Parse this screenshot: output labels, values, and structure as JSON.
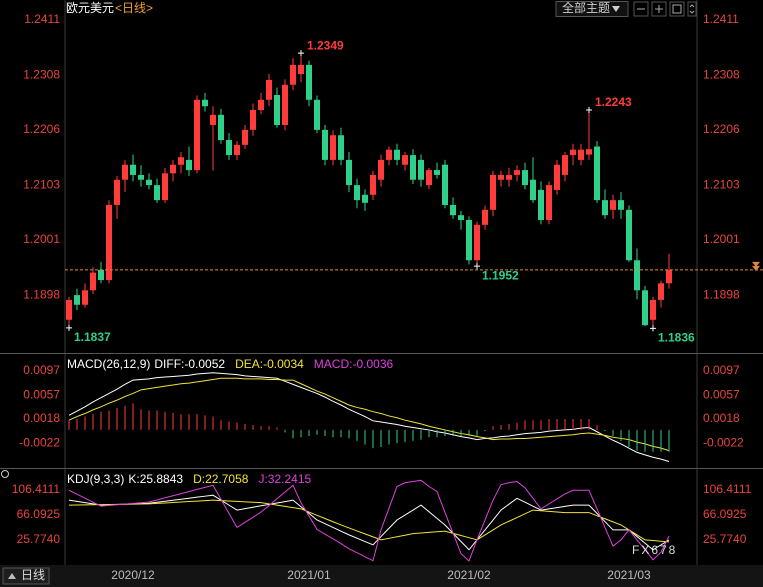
{
  "header": {
    "symbol": "欧元美元",
    "period": "<日线>",
    "theme_button": "全部主题"
  },
  "footer": {
    "period": "日线"
  },
  "watermark": "FX678",
  "chart_data": [
    {
      "type": "candlestick",
      "categories": [
        null,
        null,
        null,
        null,
        null,
        null,
        null,
        null,
        "2020/12",
        null,
        null,
        null,
        null,
        null,
        null,
        null,
        null,
        null,
        null,
        null,
        null,
        null,
        null,
        null,
        null,
        null,
        null,
        null,
        null,
        null,
        "2021/01",
        null,
        null,
        null,
        null,
        null,
        null,
        null,
        null,
        null,
        null,
        null,
        null,
        null,
        null,
        null,
        null,
        null,
        null,
        null,
        "2021/02",
        null,
        null,
        null,
        null,
        null,
        null,
        null,
        null,
        null,
        null,
        null,
        null,
        null,
        null,
        null,
        null,
        null,
        null,
        null,
        "2021/03",
        null,
        null,
        null,
        null,
        null
      ],
      "open": [
        1.1852,
        1.1898,
        1.188,
        1.1907,
        1.1945,
        1.1926,
        1.2066,
        1.2113,
        1.2141,
        1.2122,
        1.2113,
        1.2103,
        1.2075,
        1.2125,
        1.2141,
        1.215,
        1.2131,
        1.2262,
        1.2215,
        1.2234,
        1.2187,
        1.2159,
        1.2178,
        1.2206,
        1.2243,
        1.2262,
        1.2271,
        1.2215,
        1.229,
        1.231,
        1.2327,
        1.2262,
        1.2206,
        1.215,
        1.2196,
        1.215,
        1.2103,
        1.2085,
        1.2085,
        1.2113,
        1.215,
        1.2169,
        1.2141,
        1.2159,
        1.215,
        1.2103,
        1.2131,
        1.2141,
        1.2066,
        1.2047,
        1.2038,
        1.1963,
        1.2029,
        1.2057,
        1.2113,
        1.2113,
        1.2122,
        1.2131,
        1.2113,
        1.2094,
        1.2038,
        1.2094,
        1.2122,
        1.2159,
        1.215,
        1.216,
        1.2175,
        1.2075,
        1.2057,
        1.2075,
        1.2057,
        1.1963,
        1.1907,
        1.1852,
        1.1889,
        1.192
      ],
      "high": [
        1.1895,
        1.191,
        1.192,
        1.195,
        1.196,
        1.2075,
        1.212,
        1.215,
        1.216,
        1.214,
        1.2125,
        1.2115,
        1.2135,
        1.215,
        1.2165,
        1.2175,
        1.227,
        1.2275,
        1.225,
        1.2245,
        1.22,
        1.2185,
        1.2215,
        1.2255,
        1.2275,
        1.231,
        1.2285,
        1.23,
        1.234,
        1.2349,
        1.2335,
        1.227,
        1.2215,
        1.2205,
        1.221,
        1.2165,
        1.2115,
        1.2095,
        1.213,
        1.216,
        1.2175,
        1.218,
        1.2165,
        1.217,
        1.216,
        1.2135,
        1.2145,
        1.215,
        1.208,
        1.2055,
        1.2045,
        1.2035,
        1.2065,
        1.213,
        1.213,
        1.2135,
        1.214,
        1.2145,
        1.2155,
        1.211,
        1.211,
        1.215,
        1.2165,
        1.218,
        1.218,
        1.2243,
        1.2185,
        1.2095,
        1.2085,
        1.209,
        1.2065,
        1.1985,
        1.1915,
        1.1895,
        1.1925,
        1.1975
      ],
      "low": [
        1.1837,
        1.187,
        1.1875,
        1.19,
        1.192,
        1.192,
        1.204,
        1.209,
        1.211,
        1.21,
        1.2095,
        1.207,
        1.207,
        1.211,
        1.2125,
        1.212,
        1.2125,
        1.224,
        1.213,
        1.218,
        1.215,
        1.215,
        1.217,
        1.2195,
        1.2235,
        1.225,
        1.221,
        1.2205,
        1.228,
        1.2295,
        1.225,
        1.22,
        1.214,
        1.214,
        1.214,
        1.209,
        1.206,
        1.2055,
        1.2075,
        1.21,
        1.214,
        1.214,
        1.213,
        1.2105,
        1.21,
        1.2095,
        1.2115,
        1.206,
        1.204,
        1.202,
        1.1955,
        1.1952,
        1.202,
        1.2045,
        1.21,
        1.21,
        1.211,
        1.2095,
        1.207,
        1.203,
        1.203,
        1.2085,
        1.211,
        1.214,
        1.214,
        1.215,
        1.207,
        1.204,
        1.204,
        1.204,
        1.196,
        1.189,
        1.184,
        1.1836,
        1.1875,
        1.191
      ],
      "close": [
        1.1889,
        1.188,
        1.1907,
        1.194,
        1.1926,
        1.2066,
        1.2113,
        1.2141,
        1.2122,
        1.2113,
        1.2103,
        1.2075,
        1.2125,
        1.2141,
        1.2155,
        1.2131,
        1.2262,
        1.225,
        1.2234,
        1.2187,
        1.2159,
        1.2178,
        1.2206,
        1.2243,
        1.2262,
        1.2299,
        1.2215,
        1.229,
        1.2327,
        1.2327,
        1.2262,
        1.2206,
        1.215,
        1.2196,
        1.215,
        1.2103,
        1.2075,
        1.207,
        1.2122,
        1.215,
        1.2169,
        1.215,
        1.2159,
        1.2113,
        1.2113,
        1.2131,
        1.2122,
        1.2066,
        1.2047,
        1.2038,
        1.1963,
        1.2029,
        1.2057,
        1.2122,
        1.2122,
        1.2122,
        1.2131,
        1.2103,
        1.2075,
        1.2038,
        1.2103,
        1.2141,
        1.2159,
        1.2169,
        1.2169,
        1.217,
        1.2075,
        1.2047,
        1.2075,
        1.2057,
        1.1963,
        1.1907,
        1.1842,
        1.1889,
        1.192,
        1.1945
      ],
      "up_color": "#ff3b3b",
      "down_color": "#2fd08a",
      "last_price_color": "#e0883a",
      "peak_labels": [
        1.2349,
        1.2243
      ],
      "trough_labels": [
        1.1952,
        1.1837,
        1.1836
      ],
      "ylim": [
        1.1792,
        1.2448
      ],
      "yticks": [
        1.2411,
        1.2308,
        1.2206,
        1.2103,
        1.2001,
        1.1898
      ]
    },
    {
      "type": "line",
      "title": "MACD(26,12,9)",
      "series": [
        {
          "name": "DIFF:-0.0052",
          "color": "#ffffff",
          "values": [
            0.0024,
            0.0031,
            0.0038,
            0.0046,
            0.0053,
            0.006,
            0.0067,
            0.0075,
            0.0082,
            0.0083,
            0.0084,
            0.0086,
            0.0087,
            0.0088,
            0.0089,
            0.009,
            0.0092,
            0.0093,
            0.0094,
            0.0093,
            0.0092,
            0.0091,
            0.0089,
            0.0088,
            0.0087,
            0.0086,
            0.0085,
            0.008,
            0.0075,
            0.007,
            0.0065,
            0.006,
            0.0054,
            0.0047,
            0.0041,
            0.0034,
            0.0028,
            0.0022,
            0.0015,
            0.0013,
            0.0011,
            0.0009,
            0.0006,
            0.0004,
            0.0002,
            0.0,
            -0.0003,
            -0.0005,
            -0.0008,
            -0.0011,
            -0.0013,
            -0.0016,
            -0.0014,
            -0.0013,
            -0.0011,
            -0.001,
            -0.0008,
            -0.0006,
            -0.0005,
            -0.0004,
            -0.0002,
            -0.0001,
            0.0,
            0.0001,
            0.0003,
            0.0004,
            -0.0003,
            -0.001,
            -0.0017,
            -0.0023,
            -0.003,
            -0.0037,
            -0.0041,
            -0.0045,
            -0.0048,
            -0.0052
          ]
        },
        {
          "name": "DEA:-0.0034",
          "color": "#f2e23a",
          "values": [
            0.0016,
            0.0022,
            0.0027,
            0.0033,
            0.0038,
            0.0044,
            0.0049,
            0.0055,
            0.006,
            0.0066,
            0.0068,
            0.007,
            0.0072,
            0.0074,
            0.0076,
            0.0077,
            0.0079,
            0.0081,
            0.0083,
            0.0085,
            0.0085,
            0.0085,
            0.0084,
            0.0084,
            0.0084,
            0.0083,
            0.0083,
            0.0082,
            0.0082,
            0.0076,
            0.007,
            0.0064,
            0.0059,
            0.0053,
            0.0047,
            0.0041,
            0.0037,
            0.0034,
            0.003,
            0.0027,
            0.0023,
            0.002,
            0.0016,
            0.0013,
            0.001,
            0.0006,
            0.0003,
            0.0,
            -0.0003,
            -0.0006,
            -0.0008,
            -0.0011,
            -0.0013,
            -0.0016,
            -0.0015,
            -0.0015,
            -0.0014,
            -0.0014,
            -0.0013,
            -0.0012,
            -0.0011,
            -0.001,
            -0.0009,
            -0.0008,
            -0.0006,
            -0.0005,
            -0.0007,
            -0.0009,
            -0.0012,
            -0.0014,
            -0.0016,
            -0.002,
            -0.0023,
            -0.0027,
            -0.003,
            -0.0034
          ]
        },
        {
          "name": "MACD:-0.0036",
          "color": "#e040e0",
          "style": "histogram",
          "positive_color": "#ff3b3b",
          "negative_color": "#2fd08a",
          "values": [
            0.0016,
            0.0018,
            0.0022,
            0.0026,
            0.003,
            0.0032,
            0.0036,
            0.004,
            0.0044,
            0.0034,
            0.0032,
            0.0032,
            0.003,
            0.0028,
            0.0026,
            0.0026,
            0.0026,
            0.0024,
            0.0022,
            0.0016,
            0.0014,
            0.0012,
            0.001,
            0.0008,
            0.0006,
            0.0006,
            0.0004,
            -0.0004,
            -0.0014,
            -0.0012,
            -0.001,
            -0.0008,
            -0.001,
            -0.0012,
            -0.0012,
            -0.0014,
            -0.0018,
            -0.0024,
            -0.003,
            -0.0028,
            -0.0024,
            -0.0022,
            -0.002,
            -0.0018,
            -0.0016,
            -0.0012,
            -0.0012,
            -0.001,
            -0.001,
            -0.001,
            -0.001,
            -0.001,
            -0.0002,
            0.0006,
            0.0008,
            0.001,
            0.0012,
            0.0016,
            0.0016,
            0.0016,
            0.0018,
            0.0018,
            0.0018,
            0.0018,
            0.0018,
            0.0018,
            0.0008,
            -0.0002,
            -0.001,
            -0.0018,
            -0.0028,
            -0.0034,
            -0.0036,
            -0.0036,
            -0.0036,
            -0.0036
          ]
        }
      ],
      "ylim": [
        -0.0061,
        0.012
      ],
      "yticks": [
        0.0097,
        0.0057,
        0.0018,
        -0.0022
      ]
    },
    {
      "type": "line",
      "title": "KDJ(9,3,3)",
      "series": [
        {
          "name": "K:25.8843",
          "color": "#ffffff",
          "values": [
            90,
            88,
            86,
            84,
            82,
            82.5,
            83,
            83.5,
            84,
            84.5,
            85,
            86.6,
            88.3,
            89.9,
            91.5,
            93.1,
            94.8,
            96.4,
            98,
            90,
            82,
            74,
            76.3,
            78.6,
            80.9,
            83.1,
            85.4,
            87.7,
            90,
            79.3,
            68.7,
            58,
            52,
            46,
            40,
            34,
            28.7,
            23.3,
            18,
            31.3,
            44.7,
            58,
            66,
            74,
            82,
            71.3,
            60.7,
            50,
            36.7,
            23.3,
            10,
            26,
            42,
            58,
            74,
            83.5,
            93,
            86.7,
            80.3,
            74,
            76,
            78,
            80,
            82,
            82,
            82,
            68.7,
            55.3,
            42,
            42,
            42,
            31.3,
            20.7,
            10,
            17.9,
            25.8843
          ]
        },
        {
          "name": "D:22.7058",
          "color": "#f2e23a",
          "values": [
            82,
            82.2,
            82.4,
            82.6,
            82.8,
            83,
            83.2,
            83.4,
            83.6,
            83.8,
            84,
            84.8,
            85.5,
            86.3,
            87,
            87.8,
            88.5,
            89.3,
            90,
            89.3,
            88.7,
            88,
            87.3,
            86.7,
            86,
            84,
            82,
            80,
            78,
            76,
            70.8,
            65.6,
            60.4,
            55.2,
            50,
            45.2,
            40.4,
            35.6,
            30.8,
            26,
            28.5,
            31,
            33.5,
            36,
            37,
            38,
            39,
            40,
            36.5,
            33,
            29.5,
            26,
            34,
            42,
            50,
            56,
            62,
            68,
            74,
            73,
            72,
            71,
            70,
            70,
            70,
            70,
            65,
            60,
            55,
            50,
            42,
            34,
            26,
            24.9,
            23.8,
            22.7058
          ]
        },
        {
          "name": "J:32.2415",
          "color": "#e040e0",
          "values": [
            106,
            99.6,
            93.2,
            86.8,
            80.4,
            81.5,
            82.6,
            83.7,
            84.8,
            85.9,
            87,
            90.2,
            93.9,
            97.1,
            100.5,
            103.7,
            107.4,
            110.6,
            114,
            91.4,
            68.6,
            46,
            54.3,
            62.4,
            70.7,
            81.3,
            92.2,
            103.1,
            114,
            85.9,
            64.5,
            42.8,
            35.2,
            27.6,
            20,
            11.6,
            5.3,
            -1.3,
            -7.6,
            41.9,
            77.1,
            112,
            118,
            120,
            122,
            112,
            104.1,
            70,
            37.1,
            3.9,
            -8,
            26,
            58,
            90,
            115,
            118,
            120,
            110,
            92.9,
            76,
            84,
            92,
            100,
            106,
            106,
            106,
            76.1,
            45.9,
            16,
            26,
            42,
            25.9,
            10.1,
            -6,
            6.1,
            32.2415
          ]
        }
      ],
      "ylim": [
        -9.7,
        135.4
      ],
      "yticks": [
        106.4111,
        66.0925,
        {
          "value": 25.774,
          "label": "25.7740"
        }
      ]
    }
  ]
}
